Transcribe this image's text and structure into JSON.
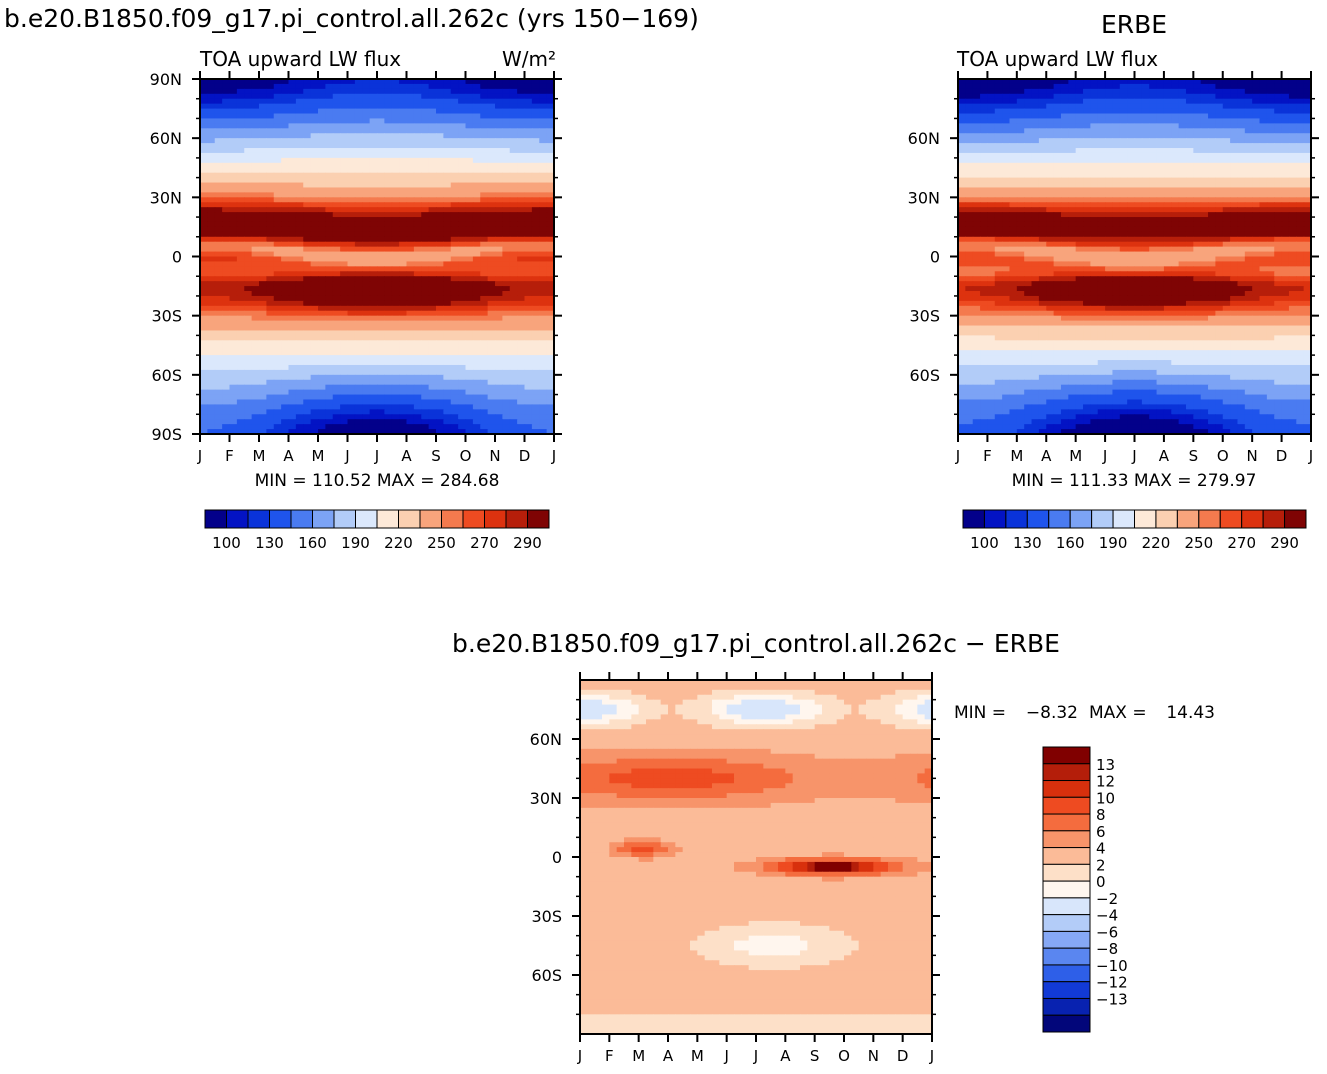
{
  "chart_data": [
    {
      "type": "heatmap",
      "title": "b.e20.B1850.f09_g17.pi_control.all.262c (yrs 150−169)",
      "subtitle_left": "TOA upward LW flux",
      "units": "W/m²",
      "x_ticks": [
        "J",
        "F",
        "M",
        "A",
        "M",
        "J",
        "J",
        "A",
        "S",
        "O",
        "N",
        "D",
        "J"
      ],
      "y_ticks": [
        "90N",
        "60N",
        "30N",
        "0",
        "30S",
        "60S",
        "90S"
      ],
      "stats": "MIN = 110.52 MAX = 284.68",
      "colorbar": {
        "orientation": "horizontal",
        "labels": [
          "100",
          "130",
          "160",
          "190",
          "220",
          "250",
          "270",
          "290"
        ],
        "colors": [
          "#03008a",
          "#0313c4",
          "#0a33d9",
          "#1f54ec",
          "#4a7bf1",
          "#7ca3f5",
          "#b2ccf8",
          "#dbe8fc",
          "#fde9d8",
          "#fbd0b1",
          "#f8a47c",
          "#f47a4e",
          "#ee4b21",
          "#dd320f",
          "#b61e0a",
          "#7f0404"
        ]
      }
    },
    {
      "type": "heatmap",
      "title": "ERBE",
      "subtitle_left": "TOA upward LW flux",
      "x_ticks": [
        "J",
        "F",
        "M",
        "A",
        "M",
        "J",
        "J",
        "A",
        "S",
        "O",
        "N",
        "D",
        "J"
      ],
      "y_ticks": [
        "60N",
        "30N",
        "0",
        "30S",
        "60S"
      ],
      "stats": "MIN = 111.33 MAX = 279.97",
      "colorbar": {
        "orientation": "horizontal",
        "labels": [
          "100",
          "130",
          "160",
          "190",
          "220",
          "250",
          "270",
          "290"
        ],
        "colors": [
          "#03008a",
          "#0313c4",
          "#0a33d9",
          "#1f54ec",
          "#4a7bf1",
          "#7ca3f5",
          "#b2ccf8",
          "#dbe8fc",
          "#fde9d8",
          "#fbd0b1",
          "#f8a47c",
          "#f47a4e",
          "#ee4b21",
          "#dd320f",
          "#b61e0a",
          "#7f0404"
        ]
      }
    },
    {
      "type": "heatmap",
      "title": "b.e20.B1850.f09_g17.pi_control.all.262c − ERBE",
      "x_ticks": [
        "J",
        "F",
        "M",
        "A",
        "M",
        "J",
        "J",
        "A",
        "S",
        "O",
        "N",
        "D",
        "J"
      ],
      "y_ticks": [
        "60N",
        "30N",
        "0",
        "30S",
        "60S"
      ],
      "stats_min_label": "MIN = ",
      "stats_min": "−8.32",
      "stats_max_label": "MAX = ",
      "stats_max": "14.43",
      "colorbar": {
        "orientation": "vertical",
        "labels": [
          "13",
          "12",
          "10",
          "8",
          "6",
          "4",
          "2",
          "0",
          "−2",
          "−4",
          "−6",
          "−8",
          "−10",
          "−12",
          "−13"
        ],
        "colors": [
          "#800000",
          "#b41e0a",
          "#d8300d",
          "#ee4b21",
          "#f46c3e",
          "#f7946a",
          "#fbbb98",
          "#fde0c8",
          "#fff6ee",
          "#d8e6fb",
          "#b3ccf8",
          "#86a8f5",
          "#5a86f0",
          "#2e5fe8",
          "#123ad6",
          "#0822b0",
          "#02067a"
        ]
      }
    }
  ]
}
